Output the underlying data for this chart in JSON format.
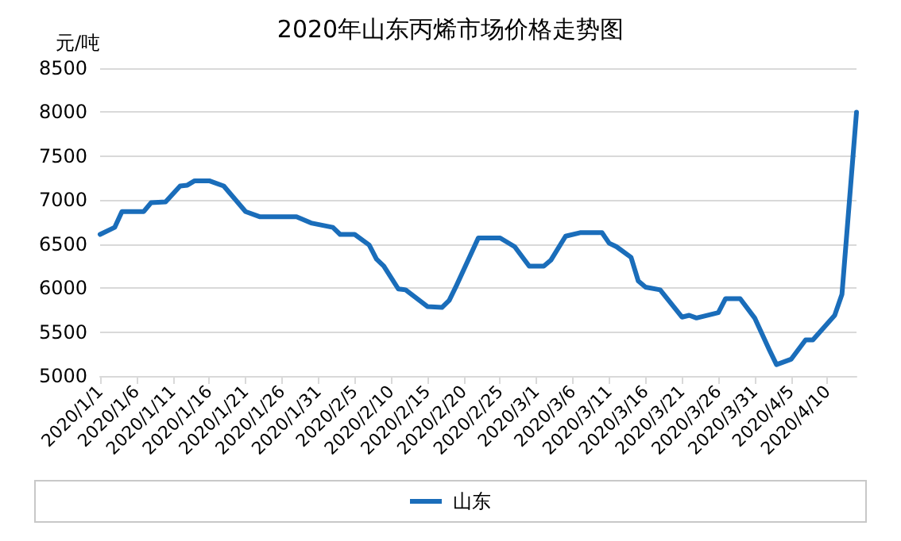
{
  "chart_data": {
    "type": "line",
    "title": "2020年山东丙烯市场价格走势图",
    "ylabel": "元/吨",
    "x": [
      "2020-01-01",
      "2020-01-03",
      "2020-01-04",
      "2020-01-07",
      "2020-01-08",
      "2020-01-10",
      "2020-01-12",
      "2020-01-13",
      "2020-01-14",
      "2020-01-16",
      "2020-01-18",
      "2020-01-21",
      "2020-01-23",
      "2020-01-28",
      "2020-01-30",
      "2020-02-02",
      "2020-02-03",
      "2020-02-05",
      "2020-02-07",
      "2020-02-08",
      "2020-02-09",
      "2020-02-11",
      "2020-02-12",
      "2020-02-15",
      "2020-02-17",
      "2020-02-18",
      "2020-02-19",
      "2020-02-22",
      "2020-02-25",
      "2020-02-27",
      "2020-02-29",
      "2020-03-02",
      "2020-03-03",
      "2020-03-05",
      "2020-03-07",
      "2020-03-10",
      "2020-03-11",
      "2020-03-12",
      "2020-03-14",
      "2020-03-15",
      "2020-03-16",
      "2020-03-18",
      "2020-03-21",
      "2020-03-22",
      "2020-03-23",
      "2020-03-26",
      "2020-03-27",
      "2020-03-29",
      "2020-03-31",
      "2020-04-02",
      "2020-04-03",
      "2020-04-05",
      "2020-04-07",
      "2020-04-08",
      "2020-04-11",
      "2020-04-12",
      "2020-04-14"
    ],
    "series": [
      {
        "name": "山东",
        "color": "#1a6dba",
        "values": [
          6610,
          6690,
          6870,
          6870,
          6970,
          6980,
          7160,
          7170,
          7220,
          7220,
          7160,
          6870,
          6810,
          6810,
          6740,
          6690,
          6610,
          6610,
          6490,
          6330,
          6250,
          5990,
          5980,
          5790,
          5780,
          5860,
          6030,
          6570,
          6570,
          6470,
          6250,
          6250,
          6320,
          6590,
          6630,
          6630,
          6510,
          6470,
          6350,
          6080,
          6010,
          5980,
          5670,
          5690,
          5660,
          5720,
          5880,
          5880,
          5660,
          5300,
          5130,
          5190,
          5410,
          5410,
          5690,
          5930,
          8000
        ]
      }
    ],
    "xlim": [
      "2020-01-01",
      "2020-04-14"
    ],
    "xticks": [
      {
        "value": "2020-01-01",
        "label": "2020/1/1"
      },
      {
        "value": "2020-01-06",
        "label": "2020/1/6"
      },
      {
        "value": "2020-01-11",
        "label": "2020/1/11"
      },
      {
        "value": "2020-01-16",
        "label": "2020/1/16"
      },
      {
        "value": "2020-01-21",
        "label": "2020/1/21"
      },
      {
        "value": "2020-01-26",
        "label": "2020/1/26"
      },
      {
        "value": "2020-01-31",
        "label": "2020/1/31"
      },
      {
        "value": "2020-02-05",
        "label": "2020/2/5"
      },
      {
        "value": "2020-02-10",
        "label": "2020/2/10"
      },
      {
        "value": "2020-02-15",
        "label": "2020/2/15"
      },
      {
        "value": "2020-02-20",
        "label": "2020/2/20"
      },
      {
        "value": "2020-02-25",
        "label": "2020/2/25"
      },
      {
        "value": "2020-03-01",
        "label": "2020/3/1"
      },
      {
        "value": "2020-03-06",
        "label": "2020/3/6"
      },
      {
        "value": "2020-03-11",
        "label": "2020/3/11"
      },
      {
        "value": "2020-03-16",
        "label": "2020/3/16"
      },
      {
        "value": "2020-03-21",
        "label": "2020/3/21"
      },
      {
        "value": "2020-03-26",
        "label": "2020/3/26"
      },
      {
        "value": "2020-03-31",
        "label": "2020/3/31"
      },
      {
        "value": "2020-04-05",
        "label": "2020/4/5"
      },
      {
        "value": "2020-04-10",
        "label": "2020/4/10"
      }
    ],
    "ylim": [
      5000,
      8500
    ],
    "yticks": [
      5000,
      5500,
      6000,
      6500,
      7000,
      7500,
      8000,
      8500
    ],
    "grid": "y",
    "legend": "bottom",
    "marker": "none",
    "line_style": "solid"
  }
}
